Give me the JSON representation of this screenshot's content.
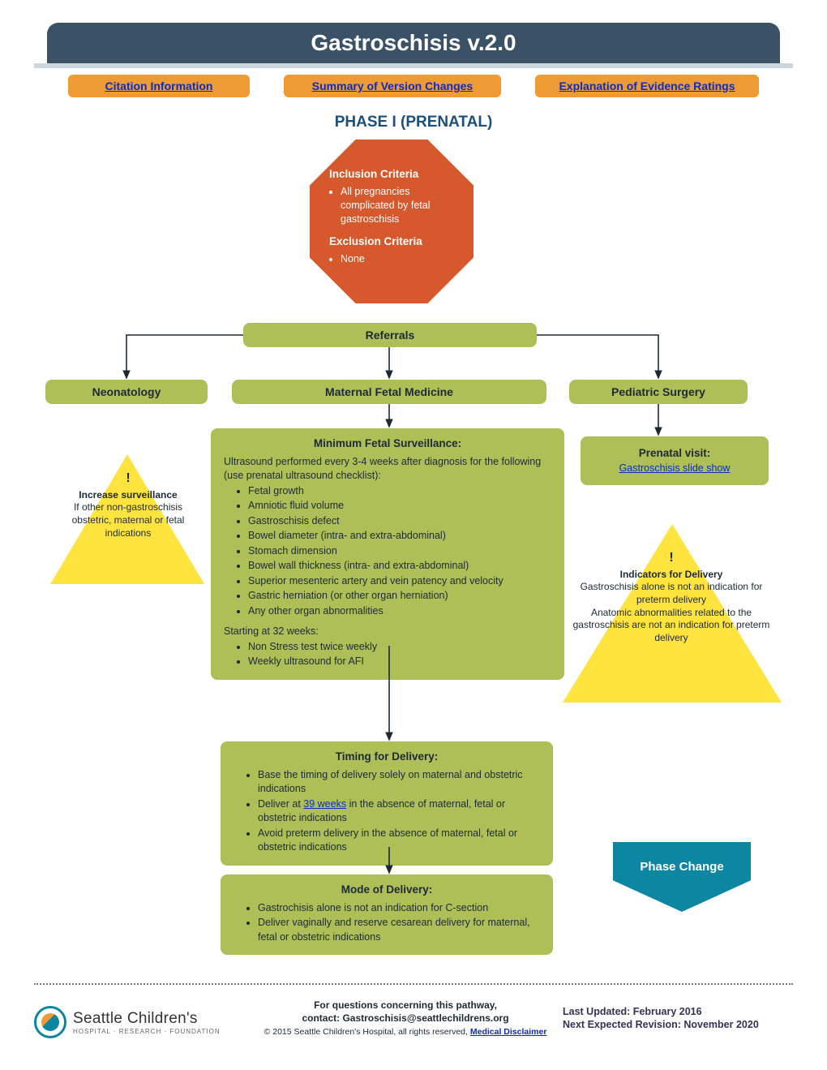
{
  "colors": {
    "header_bg": "#3b5266",
    "header_sub": "#cdd6dd",
    "link_btn_bg": "#ee9b35",
    "link_color": "#0a2cc4",
    "phase_title": "#1d4f7c",
    "octagon_bg": "#d5592c",
    "pill_bg": "#aebf57",
    "text_dark": "#1c2a36",
    "triangle_bg": "#ffe33e",
    "phase_change_bg": "#0d86a2",
    "dotted": "#7a7a7a"
  },
  "header": {
    "title": "Gastroschisis v.2.0"
  },
  "links": {
    "citation": "Citation Information",
    "summary": "Summary of Version Changes",
    "evidence": "Explanation of Evidence Ratings"
  },
  "phase_title": "PHASE I (PRENATAL)",
  "criteria": {
    "inclusion_h": "Inclusion Criteria",
    "inclusion_item": "All pregnancies complicated by fetal gastroschisis",
    "exclusion_h": "Exclusion Criteria",
    "exclusion_item": "None"
  },
  "referrals": {
    "label": "Referrals",
    "neonatology": "Neonatology",
    "mfm": "Maternal Fetal Medicine",
    "peds_surgery": "Pediatric Surgery"
  },
  "prenatal_visit": {
    "title": "Prenatal visit",
    "link": "Gastroschisis slide show"
  },
  "surveillance": {
    "title": "Minimum Fetal Surveillance:",
    "intro": "Ultrasound performed every 3-4 weeks after diagnosis for the following (use prenatal ultrasound checklist):",
    "items": [
      "Fetal growth",
      "Amniotic fluid volume",
      "Gastroschisis defect",
      "Bowel diameter (intra- and extra-abdominal)",
      "Stomach dimension",
      "Bowel wall thickness (intra- and extra-abdominal)",
      "Superior mesenteric artery and vein patency and velocity",
      "Gastric herniation (or other organ herniation)",
      "Any other organ abnormalities"
    ],
    "sub_h": "Starting at 32 weeks:",
    "sub_items": [
      "Non Stress test twice weekly",
      "Weekly ultrasound for AFI"
    ]
  },
  "warn_left": {
    "bang": "!",
    "bold": "Increase surveillance",
    "text": "If other non-gastroschisis obstetric, maternal or fetal indications"
  },
  "warn_right": {
    "bang": "!",
    "bold": "Indicators for Delivery",
    "line1": "Gastroschisis alone is not an indication for preterm delivery",
    "line2": "Anatomic abnormalities related to the gastroschisis are not an indication for preterm delivery"
  },
  "timing": {
    "title": "Timing for Delivery:",
    "items_pre": [
      "Base the timing of delivery solely on maternal and obstetric indications"
    ],
    "link_prefix": "Deliver at ",
    "link_text": "39 weeks",
    "link_suffix": " in the absence of maternal, fetal or obstetric indications",
    "items_post": [
      "Avoid preterm delivery in the absence of maternal, fetal or obstetric indications"
    ]
  },
  "mode": {
    "title": "Mode of Delivery:",
    "items": [
      "Gastrochisis alone is not an indication for C-section",
      "Deliver vaginally and reserve cesarean delivery for maternal, fetal or obstetric indications"
    ]
  },
  "phase_change": "Phase Change",
  "footer": {
    "questions": "For questions concerning this pathway,",
    "contact": "contact: Gastroschisis@seattlechildrens.org",
    "copyright": "© 2015 Seattle Children's Hospital, all rights reserved, ",
    "disclaimer": "Medical Disclaimer",
    "updated": "Last Updated: February 2016",
    "revision": "Next Expected Revision: November 2020",
    "logo_main": "Seattle Children's",
    "logo_sub": "HOSPITAL · RESEARCH · FOUNDATION"
  }
}
